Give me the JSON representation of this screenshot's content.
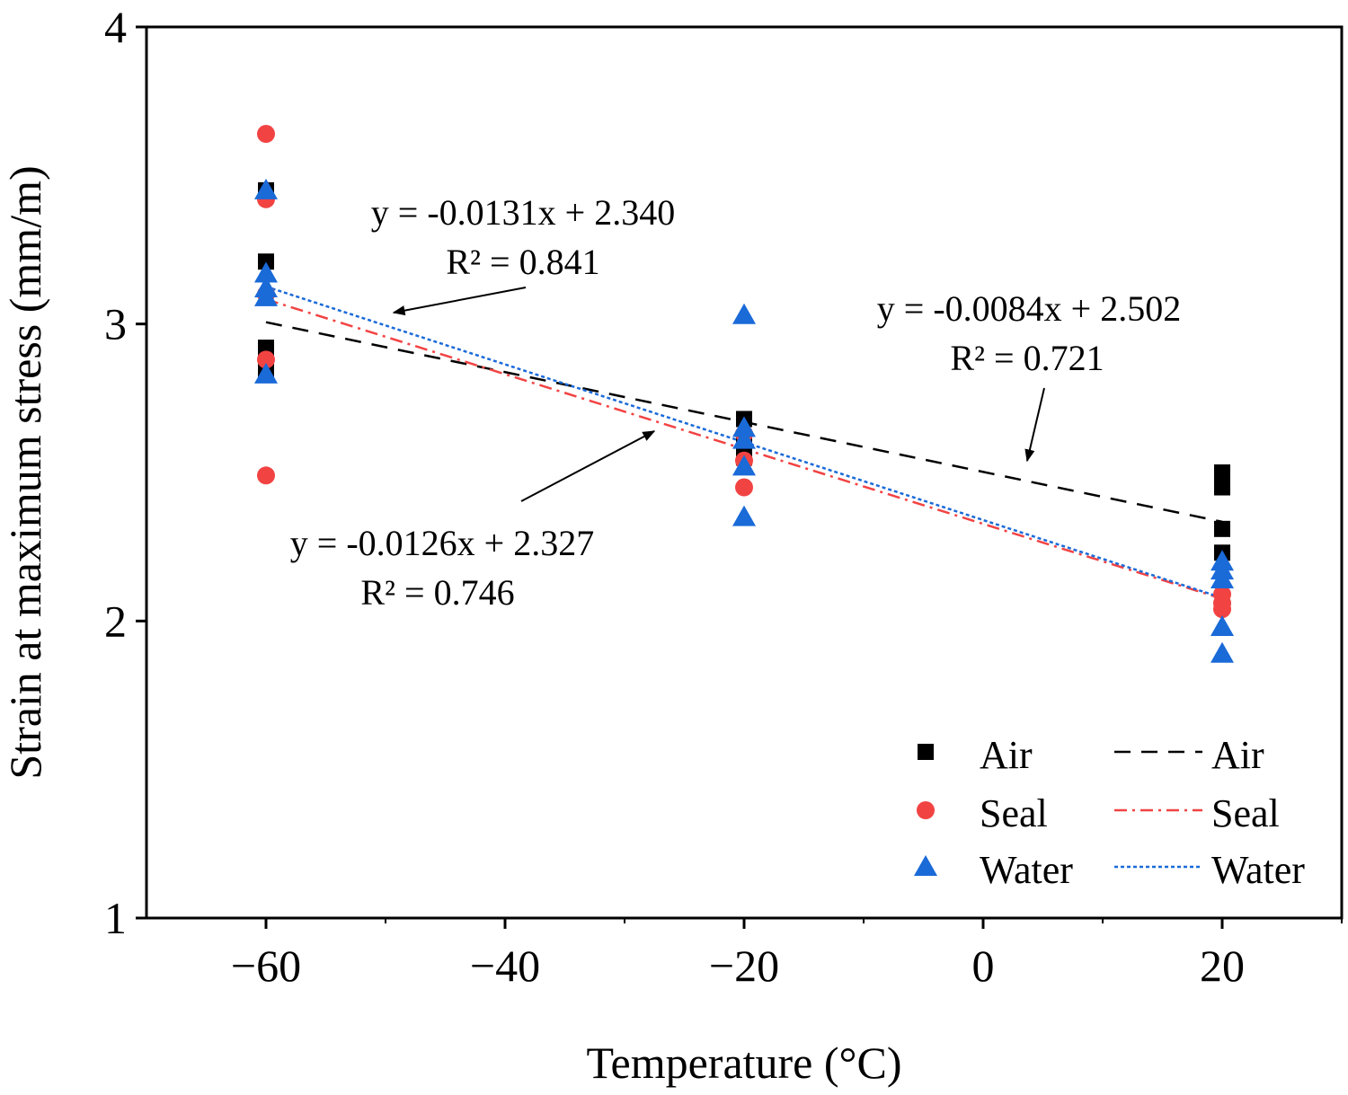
{
  "chart_data": {
    "type": "scatter",
    "title": "",
    "xlabel": "Temperature (°C)",
    "ylabel": "Strain at maximum stress (mm/m)",
    "xlim": [
      -70,
      30
    ],
    "ylim": [
      1,
      4
    ],
    "xticks": [
      -60,
      -40,
      -20,
      0,
      20
    ],
    "xtick_labels": [
      "−60",
      "−40",
      "−20",
      "0",
      "20"
    ],
    "yticks": [
      1,
      2,
      3,
      4
    ],
    "ytick_labels": [
      "1",
      "2",
      "3",
      "4"
    ],
    "grid": false,
    "legend_position": "bottom-right",
    "series": [
      {
        "name": "Air",
        "marker": "square",
        "color": "#000000",
        "points": [
          [
            -60,
            3.45
          ],
          [
            -60,
            3.21
          ],
          [
            -60,
            2.92
          ],
          [
            -60,
            2.84
          ],
          [
            -20,
            2.68
          ],
          [
            -20,
            2.6
          ],
          [
            -20,
            2.55
          ],
          [
            20,
            2.5
          ],
          [
            20,
            2.45
          ],
          [
            20,
            2.31
          ],
          [
            20,
            2.23
          ]
        ]
      },
      {
        "name": "Seal",
        "marker": "circle",
        "color": "#f24343",
        "points": [
          [
            -60,
            3.64
          ],
          [
            -60,
            3.42
          ],
          [
            -60,
            3.1
          ],
          [
            -60,
            2.88
          ],
          [
            -60,
            2.49
          ],
          [
            -20,
            2.63
          ],
          [
            -20,
            2.54
          ],
          [
            -20,
            2.45
          ],
          [
            20,
            2.09
          ],
          [
            20,
            2.06
          ],
          [
            20,
            2.04
          ]
        ]
      },
      {
        "name": "Water",
        "marker": "triangle",
        "color": "#1a6ad8",
        "points": [
          [
            -60,
            3.45
          ],
          [
            -60,
            3.17
          ],
          [
            -60,
            3.12
          ],
          [
            -60,
            3.09
          ],
          [
            -60,
            2.83
          ],
          [
            -20,
            3.03
          ],
          [
            -20,
            2.65
          ],
          [
            -20,
            2.61
          ],
          [
            -20,
            2.52
          ],
          [
            -20,
            2.35
          ],
          [
            20,
            2.2
          ],
          [
            20,
            2.17
          ],
          [
            20,
            2.14
          ],
          [
            20,
            1.98
          ],
          [
            20,
            1.89
          ]
        ]
      }
    ],
    "fits": [
      {
        "name": "Air",
        "style": "dashed",
        "color": "#000000",
        "slope": -0.0084,
        "intercept": 2.502,
        "r2": 0.721,
        "x_range": [
          -60,
          20
        ]
      },
      {
        "name": "Seal",
        "style": "dashdot",
        "color": "#f24343",
        "slope": -0.0126,
        "intercept": 2.327,
        "r2": 0.746,
        "x_range": [
          -60,
          20
        ]
      },
      {
        "name": "Water",
        "style": "dotted",
        "color": "#1a6ad8",
        "slope": -0.0131,
        "intercept": 2.34,
        "r2": 0.841,
        "x_range": [
          -60,
          20
        ]
      }
    ],
    "annotations": [
      {
        "eq": "y = -0.0131x + 2.340",
        "r2": "R² = 0.841"
      },
      {
        "eq": "y = -0.0084x + 2.502",
        "r2": "R² = 0.721"
      },
      {
        "eq": "y = -0.0126x + 2.327",
        "r2": "R² = 0.746"
      }
    ],
    "legend": {
      "markers": [
        "Air",
        "Seal",
        "Water"
      ],
      "lines": [
        "Air",
        "Seal",
        "Water"
      ]
    }
  }
}
